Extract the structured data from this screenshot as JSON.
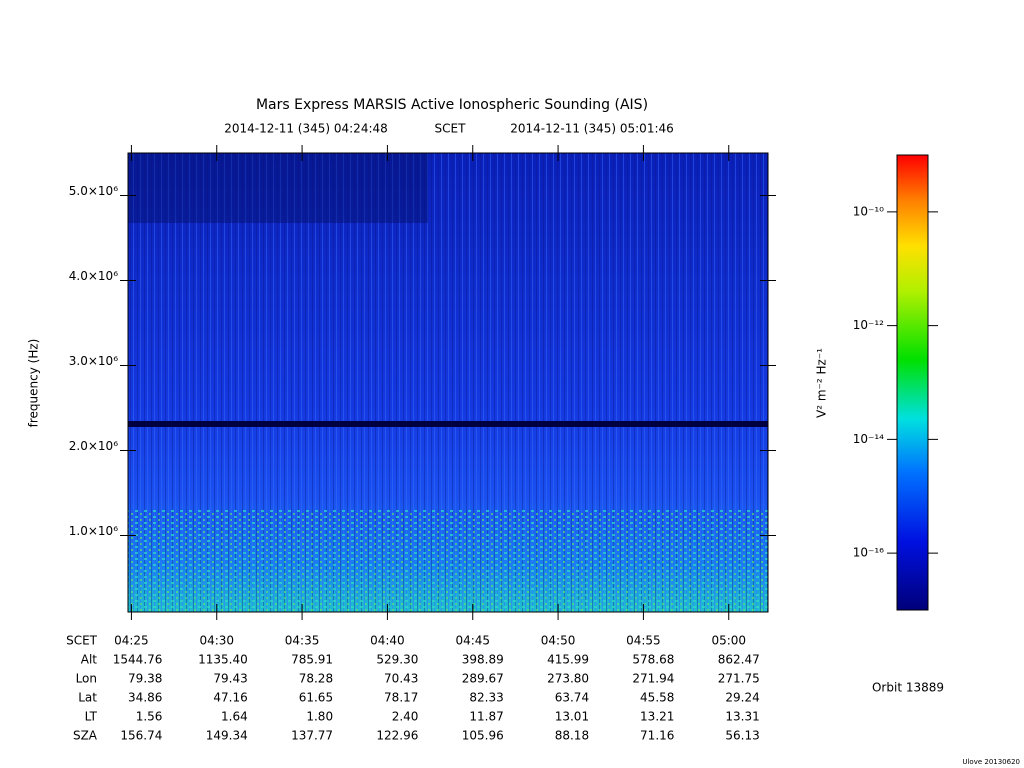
{
  "chart_data": {
    "type": "spectrogram",
    "title": "Mars Express MARSIS Active Ionospheric Sounding (AIS)",
    "subtitle_start": "2014-12-11 (345) 04:24:48",
    "subtitle_mid": "SCET",
    "subtitle_end": "2014-12-11 (345) 05:01:46",
    "ylabel": "frequency (Hz)",
    "xlim": [
      264.8,
      302.3
    ],
    "xticks": [
      {
        "value": 265,
        "label": "04:25"
      },
      {
        "value": 270,
        "label": "04:30"
      },
      {
        "value": 275,
        "label": "04:35"
      },
      {
        "value": 280,
        "label": "04:40"
      },
      {
        "value": 285,
        "label": "04:45"
      },
      {
        "value": 290,
        "label": "04:50"
      },
      {
        "value": 295,
        "label": "04:55"
      },
      {
        "value": 300,
        "label": "05:00"
      }
    ],
    "ylim": [
      100000,
      5500000
    ],
    "yticks": [
      {
        "value": 1000000,
        "label": "1.0×10⁶"
      },
      {
        "value": 2000000,
        "label": "2.0×10⁶"
      },
      {
        "value": 3000000,
        "label": "3.0×10⁶"
      },
      {
        "value": 4000000,
        "label": "4.0×10⁶"
      },
      {
        "value": 5000000,
        "label": "5.0×10⁶"
      }
    ],
    "colorbar": {
      "label": "V² m⁻² Hz⁻¹",
      "log": true,
      "zlim": [
        1e-17,
        1e-09
      ],
      "ticks": [
        {
          "value": 1e-16,
          "label": "10⁻¹⁶"
        },
        {
          "value": 1e-14,
          "label": "10⁻¹⁴"
        },
        {
          "value": 1e-12,
          "label": "10⁻¹²"
        },
        {
          "value": 1e-10,
          "label": "10⁻¹⁰"
        }
      ]
    },
    "ephemeris": {
      "scet_label": "SCET",
      "rows": [
        {
          "label": "Alt",
          "values": [
            "1544.76",
            "1135.40",
            "785.91",
            "529.30",
            "398.89",
            "415.99",
            "578.68",
            "862.47"
          ]
        },
        {
          "label": "Lon",
          "values": [
            "79.38",
            "79.43",
            "78.28",
            "70.43",
            "289.67",
            "273.80",
            "271.94",
            "271.75"
          ]
        },
        {
          "label": "Lat",
          "values": [
            "34.86",
            "47.16",
            "61.65",
            "78.17",
            "82.33",
            "63.74",
            "45.58",
            "29.24"
          ]
        },
        {
          "label": "LT",
          "values": [
            "1.56",
            "1.64",
            "1.80",
            "2.40",
            "11.87",
            "13.01",
            "13.21",
            "13.31"
          ]
        },
        {
          "label": "SZA",
          "values": [
            "156.74",
            "149.34",
            "137.77",
            "122.96",
            "105.96",
            "88.18",
            "71.16",
            "56.13"
          ]
        }
      ]
    },
    "orbit": "Orbit 13889",
    "footer": "Ulove 20130620"
  }
}
